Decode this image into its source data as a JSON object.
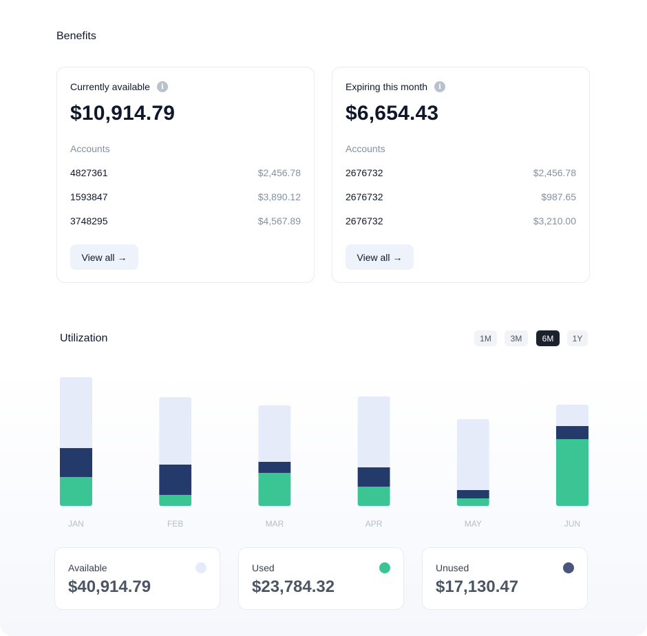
{
  "benefits": {
    "title": "Benefits",
    "cards": [
      {
        "label": "Currently available",
        "amount": "$10,914.79",
        "accounts_label": "Accounts",
        "accounts": [
          {
            "id": "4827361",
            "amount": "$2,456.78"
          },
          {
            "id": "1593847",
            "amount": "$3,890.12"
          },
          {
            "id": "3748295",
            "amount": "$4,567.89"
          }
        ],
        "button": "View all",
        "button_arrow": "→"
      },
      {
        "label": "Expiring this month",
        "amount": "$6,654.43",
        "accounts_label": "Accounts",
        "accounts": [
          {
            "id": "2676732",
            "amount": "$2,456.78"
          },
          {
            "id": "2676732",
            "amount": "$987.65"
          },
          {
            "id": "2676732",
            "amount": "$3,210.00"
          }
        ],
        "button": "View all",
        "button_arrow": "→"
      }
    ]
  },
  "utilization": {
    "title": "Utilization",
    "ranges": [
      "1M",
      "3M",
      "6M",
      "1Y"
    ],
    "active_range": "6M"
  },
  "chart_data": {
    "type": "bar",
    "stacked": true,
    "categories": [
      "JAN",
      "FEB",
      "MAR",
      "APR",
      "MAY",
      "JUN"
    ],
    "series": [
      {
        "name": "Used",
        "color": "#3bc594",
        "values": [
          42,
          16,
          48,
          28,
          11,
          97
        ]
      },
      {
        "name": "Unused",
        "color": "#243a6a",
        "values": [
          42,
          44,
          16,
          28,
          12,
          19
        ]
      },
      {
        "name": "Available",
        "color": "#e5ebf8",
        "values": [
          103,
          98,
          82,
          103,
          103,
          31
        ]
      }
    ],
    "ylim": [
      0,
      190
    ],
    "grid": false,
    "legend": "none"
  },
  "stats": [
    {
      "label": "Available",
      "value": "$40,914.79",
      "color": "#e5ebf8"
    },
    {
      "label": "Used",
      "value": "$23,784.32",
      "color": "#3bc594"
    },
    {
      "label": "Unused",
      "value": "$17,130.47",
      "color": "#4a5680"
    }
  ]
}
